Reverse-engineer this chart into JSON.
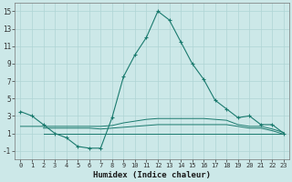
{
  "xlabel": "Humidex (Indice chaleur)",
  "background_color": "#cce8e8",
  "grid_color": "#afd4d4",
  "line_color": "#1a7a6e",
  "x_ticks": [
    0,
    1,
    2,
    3,
    4,
    5,
    6,
    7,
    8,
    9,
    10,
    11,
    12,
    13,
    14,
    15,
    16,
    17,
    18,
    19,
    20,
    21,
    22,
    23
  ],
  "ylim": [
    -2,
    16
  ],
  "xlim": [
    -0.5,
    23.5
  ],
  "yticks": [
    -1,
    1,
    3,
    5,
    7,
    9,
    11,
    13,
    15
  ],
  "series1_x": [
    0,
    1,
    2,
    3,
    4,
    5,
    6,
    7,
    8,
    9,
    10,
    11,
    12,
    13,
    14,
    15,
    16,
    17,
    18,
    19,
    20,
    21,
    22,
    23
  ],
  "series1_y": [
    3.5,
    3.0,
    2.0,
    1.0,
    0.5,
    -0.5,
    -0.7,
    -0.7,
    2.8,
    7.5,
    10.0,
    12.0,
    15.0,
    14.0,
    11.5,
    9.0,
    7.2,
    4.8,
    3.8,
    2.8,
    3.0,
    2.0,
    2.0,
    1.0
  ],
  "series2_x": [
    0,
    1,
    2,
    3,
    4,
    5,
    6,
    7,
    8,
    9,
    10,
    11,
    12,
    13,
    14,
    15,
    16,
    17,
    18,
    19,
    20,
    21,
    22,
    23
  ],
  "series2_y": [
    1.8,
    1.8,
    1.8,
    1.8,
    1.8,
    1.8,
    1.8,
    1.8,
    1.9,
    2.2,
    2.4,
    2.6,
    2.7,
    2.7,
    2.7,
    2.7,
    2.7,
    2.6,
    2.5,
    2.0,
    1.8,
    1.8,
    1.5,
    1.1
  ],
  "series3_x": [
    2,
    3,
    4,
    5,
    6,
    7,
    8,
    9,
    10,
    11,
    12,
    13,
    14,
    15,
    16,
    17,
    18,
    19,
    20,
    21,
    22,
    23
  ],
  "series3_y": [
    1.6,
    1.6,
    1.6,
    1.6,
    1.6,
    1.5,
    1.6,
    1.7,
    1.8,
    1.9,
    2.0,
    2.0,
    2.0,
    2.0,
    2.0,
    2.0,
    2.0,
    1.8,
    1.6,
    1.6,
    1.3,
    0.9
  ],
  "series4_x": [
    2,
    3,
    4,
    5,
    6,
    7,
    8,
    9,
    10,
    11,
    12,
    13,
    14,
    15,
    16,
    17,
    18,
    19,
    20,
    21,
    22,
    23
  ],
  "series4_y": [
    1.0,
    1.0,
    1.0,
    1.0,
    1.0,
    1.0,
    1.0,
    1.0,
    1.0,
    1.0,
    1.0,
    1.0,
    1.0,
    1.0,
    1.0,
    1.0,
    1.0,
    1.0,
    1.0,
    1.0,
    1.0,
    1.0
  ]
}
